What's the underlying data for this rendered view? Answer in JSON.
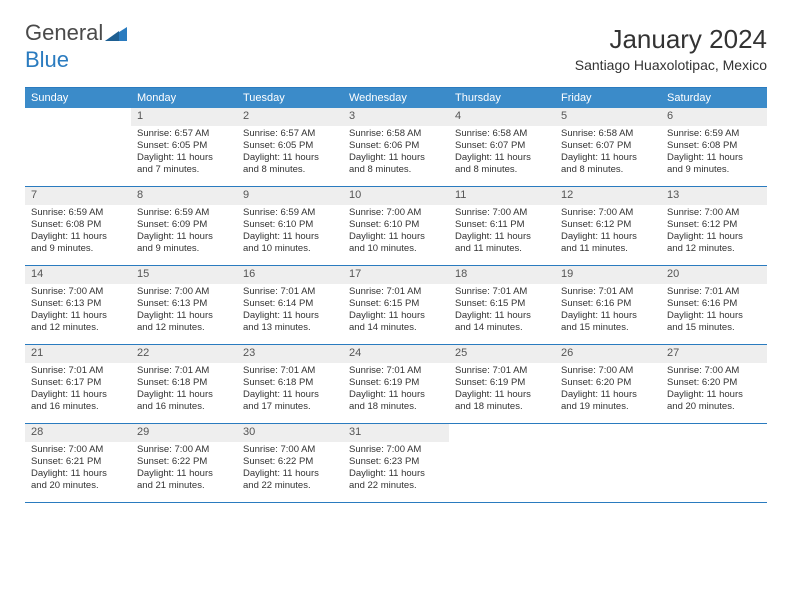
{
  "logo": {
    "text1": "General",
    "text2": "Blue"
  },
  "title": "January 2024",
  "location": "Santiago Huaxolotipac, Mexico",
  "colors": {
    "header_bg": "#3b8bc9",
    "rule": "#2a7bbf",
    "daynum_bg": "#eeeeee",
    "text": "#333333",
    "logo_gray": "#4a4a4a",
    "logo_blue": "#2a7bbf"
  },
  "weekdays": [
    "Sunday",
    "Monday",
    "Tuesday",
    "Wednesday",
    "Thursday",
    "Friday",
    "Saturday"
  ],
  "weeks": [
    [
      null,
      {
        "n": "1",
        "sr": "6:57 AM",
        "ss": "6:05 PM",
        "dl": "11 hours and 7 minutes."
      },
      {
        "n": "2",
        "sr": "6:57 AM",
        "ss": "6:05 PM",
        "dl": "11 hours and 8 minutes."
      },
      {
        "n": "3",
        "sr": "6:58 AM",
        "ss": "6:06 PM",
        "dl": "11 hours and 8 minutes."
      },
      {
        "n": "4",
        "sr": "6:58 AM",
        "ss": "6:07 PM",
        "dl": "11 hours and 8 minutes."
      },
      {
        "n": "5",
        "sr": "6:58 AM",
        "ss": "6:07 PM",
        "dl": "11 hours and 8 minutes."
      },
      {
        "n": "6",
        "sr": "6:59 AM",
        "ss": "6:08 PM",
        "dl": "11 hours and 9 minutes."
      }
    ],
    [
      {
        "n": "7",
        "sr": "6:59 AM",
        "ss": "6:08 PM",
        "dl": "11 hours and 9 minutes."
      },
      {
        "n": "8",
        "sr": "6:59 AM",
        "ss": "6:09 PM",
        "dl": "11 hours and 9 minutes."
      },
      {
        "n": "9",
        "sr": "6:59 AM",
        "ss": "6:10 PM",
        "dl": "11 hours and 10 minutes."
      },
      {
        "n": "10",
        "sr": "7:00 AM",
        "ss": "6:10 PM",
        "dl": "11 hours and 10 minutes."
      },
      {
        "n": "11",
        "sr": "7:00 AM",
        "ss": "6:11 PM",
        "dl": "11 hours and 11 minutes."
      },
      {
        "n": "12",
        "sr": "7:00 AM",
        "ss": "6:12 PM",
        "dl": "11 hours and 11 minutes."
      },
      {
        "n": "13",
        "sr": "7:00 AM",
        "ss": "6:12 PM",
        "dl": "11 hours and 12 minutes."
      }
    ],
    [
      {
        "n": "14",
        "sr": "7:00 AM",
        "ss": "6:13 PM",
        "dl": "11 hours and 12 minutes."
      },
      {
        "n": "15",
        "sr": "7:00 AM",
        "ss": "6:13 PM",
        "dl": "11 hours and 12 minutes."
      },
      {
        "n": "16",
        "sr": "7:01 AM",
        "ss": "6:14 PM",
        "dl": "11 hours and 13 minutes."
      },
      {
        "n": "17",
        "sr": "7:01 AM",
        "ss": "6:15 PM",
        "dl": "11 hours and 14 minutes."
      },
      {
        "n": "18",
        "sr": "7:01 AM",
        "ss": "6:15 PM",
        "dl": "11 hours and 14 minutes."
      },
      {
        "n": "19",
        "sr": "7:01 AM",
        "ss": "6:16 PM",
        "dl": "11 hours and 15 minutes."
      },
      {
        "n": "20",
        "sr": "7:01 AM",
        "ss": "6:16 PM",
        "dl": "11 hours and 15 minutes."
      }
    ],
    [
      {
        "n": "21",
        "sr": "7:01 AM",
        "ss": "6:17 PM",
        "dl": "11 hours and 16 minutes."
      },
      {
        "n": "22",
        "sr": "7:01 AM",
        "ss": "6:18 PM",
        "dl": "11 hours and 16 minutes."
      },
      {
        "n": "23",
        "sr": "7:01 AM",
        "ss": "6:18 PM",
        "dl": "11 hours and 17 minutes."
      },
      {
        "n": "24",
        "sr": "7:01 AM",
        "ss": "6:19 PM",
        "dl": "11 hours and 18 minutes."
      },
      {
        "n": "25",
        "sr": "7:01 AM",
        "ss": "6:19 PM",
        "dl": "11 hours and 18 minutes."
      },
      {
        "n": "26",
        "sr": "7:00 AM",
        "ss": "6:20 PM",
        "dl": "11 hours and 19 minutes."
      },
      {
        "n": "27",
        "sr": "7:00 AM",
        "ss": "6:20 PM",
        "dl": "11 hours and 20 minutes."
      }
    ],
    [
      {
        "n": "28",
        "sr": "7:00 AM",
        "ss": "6:21 PM",
        "dl": "11 hours and 20 minutes."
      },
      {
        "n": "29",
        "sr": "7:00 AM",
        "ss": "6:22 PM",
        "dl": "11 hours and 21 minutes."
      },
      {
        "n": "30",
        "sr": "7:00 AM",
        "ss": "6:22 PM",
        "dl": "11 hours and 22 minutes."
      },
      {
        "n": "31",
        "sr": "7:00 AM",
        "ss": "6:23 PM",
        "dl": "11 hours and 22 minutes."
      },
      null,
      null,
      null
    ]
  ],
  "labels": {
    "sunrise": "Sunrise:",
    "sunset": "Sunset:",
    "daylight": "Daylight:"
  }
}
